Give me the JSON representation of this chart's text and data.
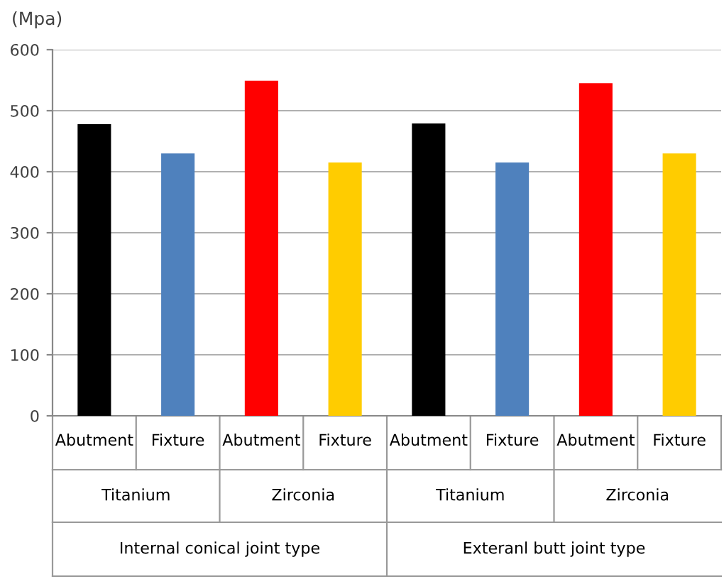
{
  "chart_data": {
    "type": "bar",
    "ylabel": "(Mpa)",
    "categories": [
      "Abutment",
      "Fixture",
      "Abutment",
      "Fixture",
      "Abutment",
      "Fixture",
      "Abutment",
      "Fixture"
    ],
    "values": [
      478,
      430,
      549,
      415,
      479,
      415,
      545,
      430
    ],
    "colors": [
      "#000000",
      "#4f81bd",
      "#ff0000",
      "#ffcc00",
      "#000000",
      "#4f81bd",
      "#ff0000",
      "#ffcc00"
    ],
    "ylim": [
      0,
      600
    ],
    "yticks": [
      0,
      100,
      200,
      300,
      400,
      500,
      600
    ],
    "grid": "y",
    "legend": false,
    "annotations": [
      "Titanium",
      "Zirconia",
      "Titanium",
      "Zirconia",
      "Internal conical joint type",
      "Exteranl butt joint type"
    ]
  }
}
